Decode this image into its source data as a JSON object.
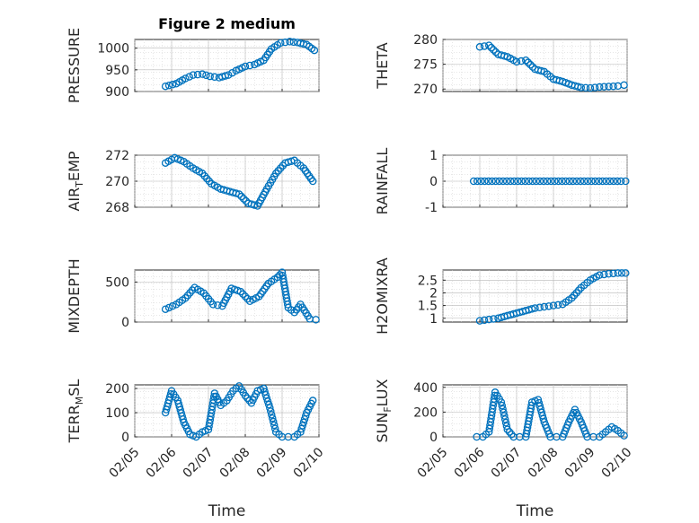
{
  "chart_data": [
    {
      "type": "scatter",
      "title": "Figure 2 medium",
      "ylabel": "PRESSURE",
      "xlim": [
        "02/05",
        "02/10"
      ],
      "ylim": [
        900,
        1020
      ],
      "yticks": [
        "900",
        "950",
        "1000"
      ],
      "grid": true,
      "color": "#0072BD",
      "x": [
        "02/05 20:00",
        "02/06 03:00",
        "02/06 09:00",
        "02/06 14:00",
        "02/06 20:00",
        "02/07 01:00",
        "02/07 07:00",
        "02/07 13:00",
        "02/07 18:00",
        "02/08 00:00",
        "02/08 06:00",
        "02/08 12:00",
        "02/08 17:00",
        "02/08 23:00",
        "02/09 05:00",
        "02/09 10:00",
        "02/09 16:00",
        "02/09 21:00"
      ],
      "y": [
        912,
        918,
        930,
        938,
        940,
        935,
        932,
        938,
        948,
        958,
        962,
        972,
        998,
        1012,
        1015,
        1013,
        1008,
        995
      ]
    },
    {
      "type": "scatter",
      "title": "",
      "ylabel": "THETA",
      "xlim": [
        "02/05",
        "02/10"
      ],
      "ylim": [
        269.5,
        280
      ],
      "yticks": [
        "270",
        "275",
        "280"
      ],
      "grid": true,
      "color": "#0072BD",
      "x": [
        "02/06 00:00",
        "02/06 06:00",
        "02/06 12:00",
        "02/06 18:00",
        "02/07 00:00",
        "02/07 06:00",
        "02/07 12:00",
        "02/07 18:00",
        "02/08 00:00",
        "02/08 06:00",
        "02/08 12:00",
        "02/08 18:00",
        "02/09 00:00",
        "02/09 06:00",
        "02/09 12:00",
        "02/09 18:00",
        "02/09 22:00"
      ],
      "y": [
        278.5,
        278.8,
        277,
        276.5,
        275.5,
        275.8,
        274,
        273.5,
        272,
        271.5,
        270.8,
        270.3,
        270.2,
        270.4,
        270.5,
        270.6,
        270.8
      ]
    },
    {
      "type": "scatter",
      "title": "",
      "ylabel": "AIR_TEMP",
      "xlim": [
        "02/05",
        "02/10"
      ],
      "ylim": [
        268,
        272
      ],
      "yticks": [
        "268",
        "270",
        "272"
      ],
      "grid": true,
      "color": "#0072BD",
      "x": [
        "02/05 20:00",
        "02/06 02:00",
        "02/06 08:00",
        "02/06 14:00",
        "02/06 20:00",
        "02/07 02:00",
        "02/07 08:00",
        "02/07 14:00",
        "02/07 20:00",
        "02/08 02:00",
        "02/08 08:00",
        "02/08 14:00",
        "02/08 20:00",
        "02/09 02:00",
        "02/09 08:00",
        "02/09 14:00",
        "02/09 20:00"
      ],
      "y": [
        271.4,
        271.8,
        271.5,
        271.0,
        270.6,
        269.8,
        269.4,
        269.2,
        269.0,
        268.3,
        268.1,
        269.4,
        270.6,
        271.4,
        271.6,
        271.0,
        270.0
      ]
    },
    {
      "type": "scatter",
      "title": "",
      "ylabel": "RAINFALL",
      "xlim": [
        "02/05",
        "02/10"
      ],
      "ylim": [
        -1,
        1
      ],
      "yticks": [
        "-1",
        "0",
        "1"
      ],
      "grid": true,
      "color": "#0072BD",
      "x": [
        "02/05 20:00",
        "02/06 08:00",
        "02/06 20:00",
        "02/07 08:00",
        "02/07 20:00",
        "02/08 08:00",
        "02/08 20:00",
        "02/09 08:00",
        "02/09 20:00",
        "02/09 23:00"
      ],
      "y": [
        0,
        0,
        0,
        0,
        0,
        0,
        0,
        0,
        0,
        0
      ]
    },
    {
      "type": "scatter",
      "title": "",
      "ylabel": "MIXDEPTH",
      "xlim": [
        "02/05",
        "02/10"
      ],
      "ylim": [
        0,
        650
      ],
      "yticks": [
        "0",
        "500"
      ],
      "grid": true,
      "color": "#0072BD",
      "x": [
        "02/05 20:00",
        "02/06 03:00",
        "02/06 09:00",
        "02/06 15:00",
        "02/06 21:00",
        "02/07 03:00",
        "02/07 09:00",
        "02/07 15:00",
        "02/07 21:00",
        "02/08 03:00",
        "02/08 09:00",
        "02/08 15:00",
        "02/08 21:00",
        "02/09 00:00",
        "02/09 04:00",
        "02/09 08:00",
        "02/09 12:00",
        "02/09 18:00",
        "02/09 22:00"
      ],
      "y": [
        160,
        220,
        300,
        430,
        360,
        220,
        200,
        420,
        380,
        260,
        320,
        480,
        560,
        620,
        180,
        120,
        220,
        40,
        30
      ]
    },
    {
      "type": "scatter",
      "title": "",
      "ylabel": "H2OMIXRA",
      "xlim": [
        "02/05",
        "02/10"
      ],
      "ylim": [
        0.85,
        2.9
      ],
      "yticks": [
        "1",
        "1.5",
        "2",
        "2.5"
      ],
      "grid": true,
      "color": "#0072BD",
      "x": [
        "02/06 00:00",
        "02/06 06:00",
        "02/06 12:00",
        "02/06 18:00",
        "02/07 00:00",
        "02/07 06:00",
        "02/07 12:00",
        "02/07 18:00",
        "02/08 00:00",
        "02/08 06:00",
        "02/08 12:00",
        "02/08 18:00",
        "02/09 00:00",
        "02/09 06:00",
        "02/09 12:00",
        "02/09 18:00",
        "02/09 23:00"
      ],
      "y": [
        0.9,
        0.95,
        1.0,
        1.1,
        1.2,
        1.3,
        1.4,
        1.45,
        1.5,
        1.55,
        1.8,
        2.2,
        2.5,
        2.7,
        2.75,
        2.78,
        2.78
      ]
    },
    {
      "type": "scatter",
      "title": "",
      "ylabel": "TERR_MSL",
      "xlim": [
        "02/05",
        "02/10"
      ],
      "ylim": [
        0,
        215
      ],
      "yticks": [
        "0",
        "100",
        "200"
      ],
      "grid": true,
      "color": "#0072BD",
      "x": [
        "02/05 20:00",
        "02/06 00:00",
        "02/06 04:00",
        "02/06 08:00",
        "02/06 12:00",
        "02/06 16:00",
        "02/06 20:00",
        "02/07 00:00",
        "02/07 04:00",
        "02/07 08:00",
        "02/07 12:00",
        "02/07 16:00",
        "02/07 20:00",
        "02/08 00:00",
        "02/08 04:00",
        "02/08 08:00",
        "02/08 12:00",
        "02/08 16:00",
        "02/08 20:00",
        "02/09 00:00",
        "02/09 04:00",
        "02/09 08:00",
        "02/09 12:00",
        "02/09 16:00",
        "02/09 20:00"
      ],
      "y": [
        100,
        190,
        150,
        60,
        10,
        0,
        20,
        30,
        180,
        130,
        150,
        190,
        210,
        170,
        140,
        190,
        200,
        120,
        20,
        0,
        0,
        0,
        20,
        100,
        150
      ]
    },
    {
      "type": "scatter",
      "title": "",
      "ylabel": "SUN_FLUX",
      "xlim": [
        "02/05",
        "02/10"
      ],
      "ylim": [
        0,
        420
      ],
      "yticks": [
        "0",
        "200",
        "400"
      ],
      "grid": true,
      "color": "#0072BD",
      "x": [
        "02/05 22:00",
        "02/06 02:00",
        "02/06 06:00",
        "02/06 10:00",
        "02/06 14:00",
        "02/06 18:00",
        "02/06 22:00",
        "02/07 02:00",
        "02/07 06:00",
        "02/07 10:00",
        "02/07 14:00",
        "02/07 18:00",
        "02/07 22:00",
        "02/08 02:00",
        "02/08 06:00",
        "02/08 10:00",
        "02/08 14:00",
        "02/08 18:00",
        "02/08 22:00",
        "02/09 02:00",
        "02/09 06:00",
        "02/09 10:00",
        "02/09 14:00",
        "02/09 18:00",
        "02/09 22:00"
      ],
      "y": [
        0,
        0,
        40,
        360,
        280,
        60,
        0,
        0,
        0,
        280,
        300,
        120,
        0,
        0,
        0,
        120,
        220,
        120,
        0,
        0,
        0,
        40,
        80,
        50,
        10
      ]
    }
  ],
  "shared_xticks": [
    "02/05",
    "02/06",
    "02/07",
    "02/08",
    "02/09",
    "02/10"
  ],
  "shared_xlabel": "Time",
  "ylabel_display": {
    "AIR_TEMP": {
      "base": "AIR",
      "sub": "T",
      "rest": "EMP"
    },
    "TERR_MSL": {
      "base": "TERR",
      "sub": "M",
      "rest": "SL"
    },
    "SUN_FLUX": {
      "base": "SUN",
      "sub": "F",
      "rest": "LUX"
    }
  }
}
